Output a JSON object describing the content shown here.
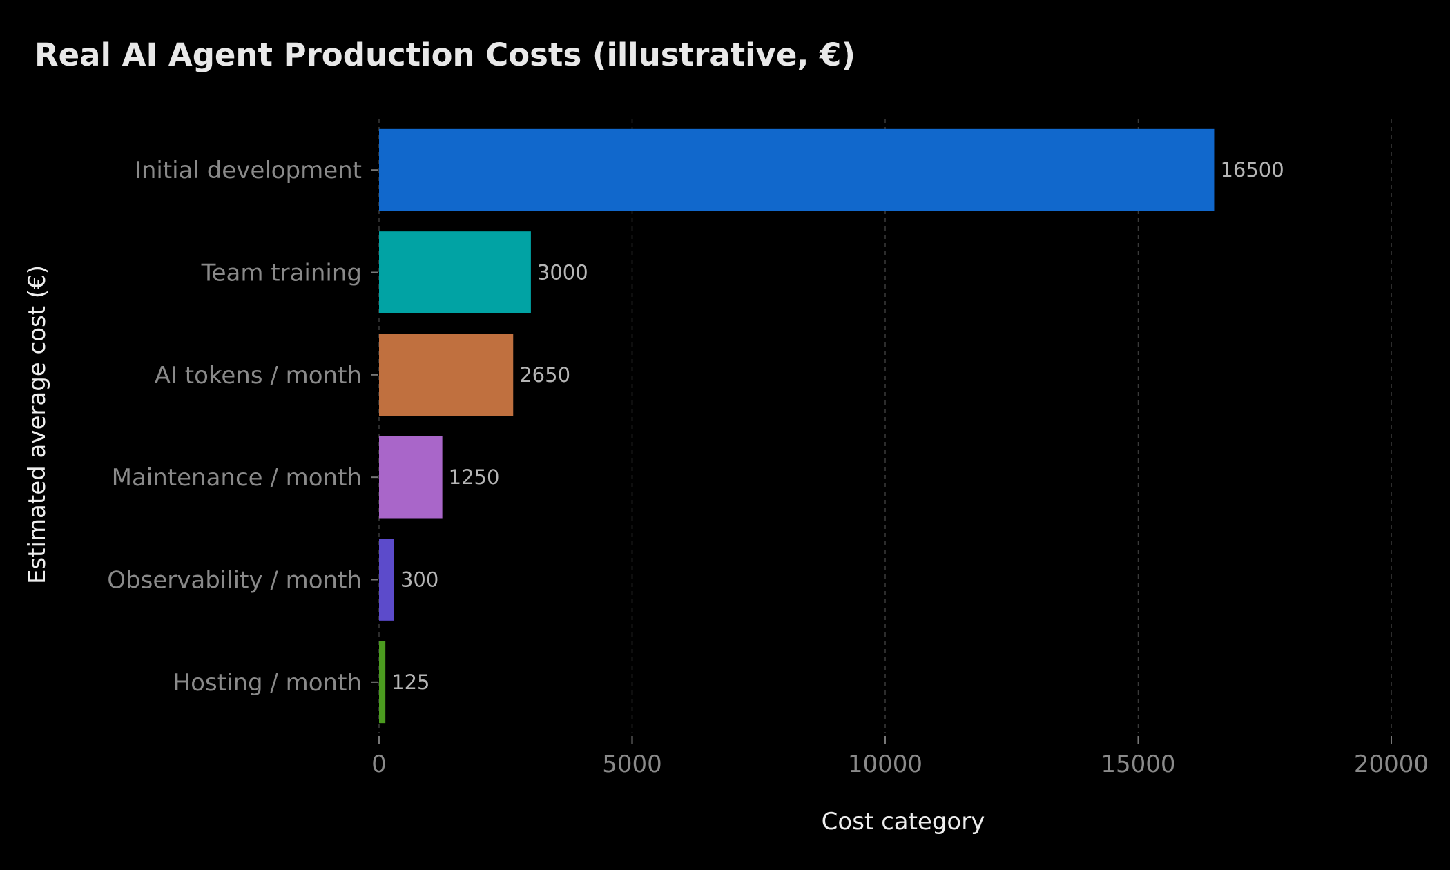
{
  "chart_data": {
    "type": "bar",
    "orientation": "horizontal",
    "title": "Real AI Agent Production Costs (illustrative, €)",
    "xlabel": "Cost category",
    "ylabel": "Estimated average cost (€)",
    "xlim": [
      0,
      20000
    ],
    "xticks": [
      0,
      5000,
      10000,
      15000,
      20000
    ],
    "grid": "vertical-dashed",
    "categories": [
      "Initial development",
      "Team training",
      "AI tokens / month",
      "Maintenance / month",
      "Observability / month",
      "Hosting / month"
    ],
    "values": [
      16500,
      3000,
      2650,
      1250,
      300,
      125
    ],
    "colors": [
      "#1168cc",
      "#01a3a4",
      "#c0703f",
      "#a966c9",
      "#5c4bcb",
      "#4b9b1f"
    ],
    "data_labels": [
      "16500",
      "3000",
      "2650",
      "1250",
      "300",
      "125"
    ]
  }
}
